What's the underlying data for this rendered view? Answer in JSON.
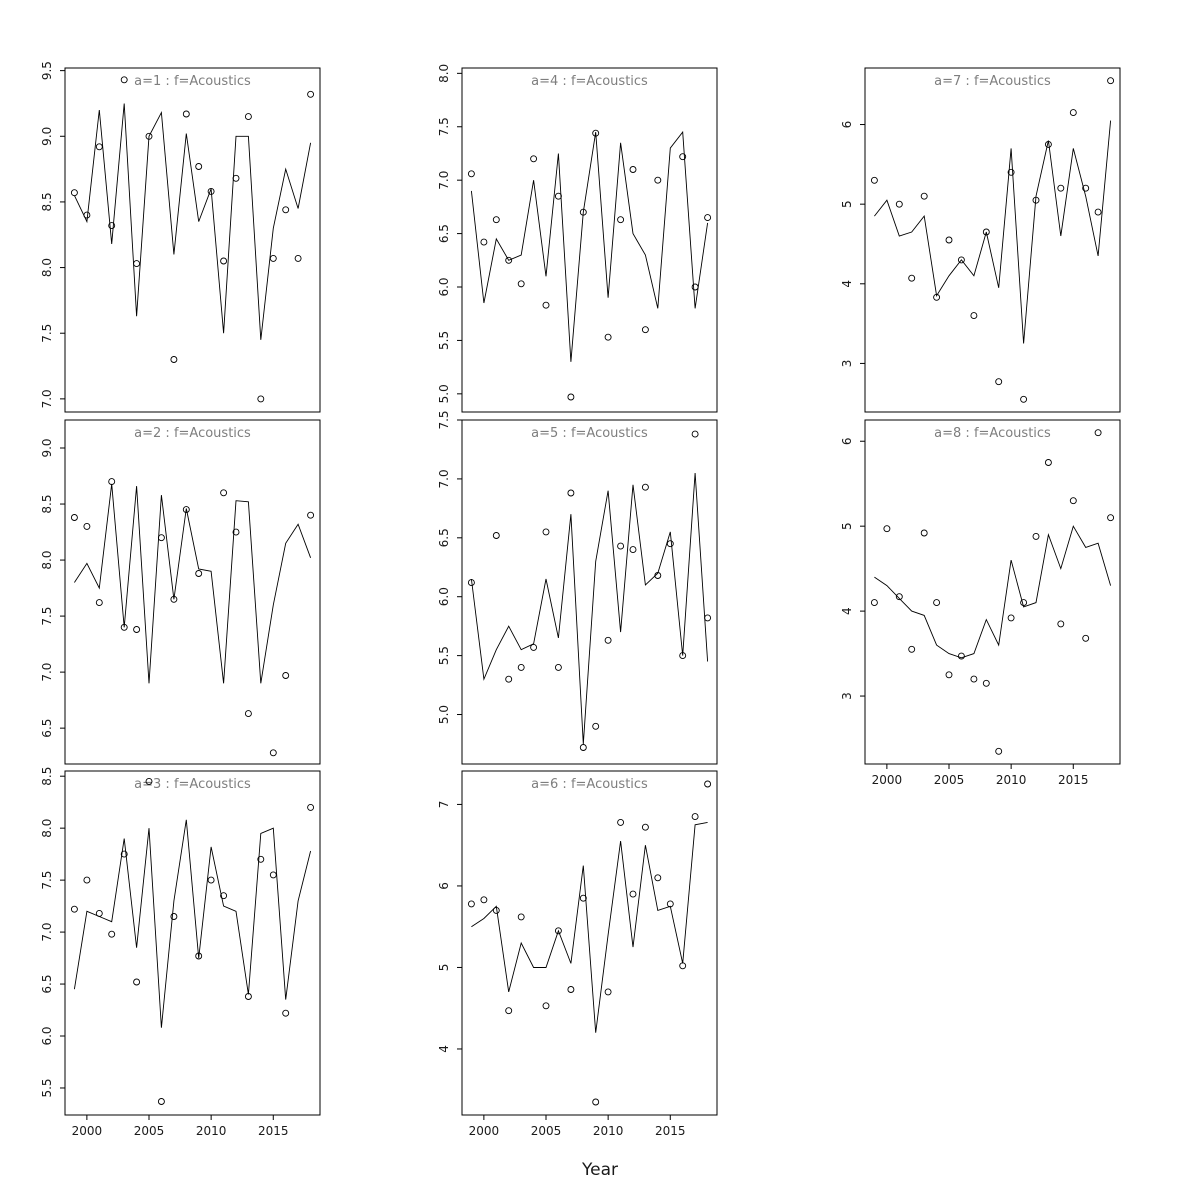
{
  "figure": {
    "xlabel": "Year",
    "title_color": "#7e7e7e",
    "axis_color": "#000000",
    "years": [
      1999,
      2000,
      2001,
      2002,
      2003,
      2004,
      2005,
      2006,
      2007,
      2008,
      2009,
      2010,
      2011,
      2012,
      2013,
      2014,
      2015,
      2016,
      2017,
      2018
    ]
  },
  "chart_data": [
    {
      "type": "scatter",
      "title": "a=1 : f=Acoustics",
      "xlim": [
        1998.24,
        2018.76
      ],
      "ylim": [
        6.9,
        9.52
      ],
      "xticks": [
        2000,
        2005,
        2010,
        2015
      ],
      "yticks": [
        7.0,
        7.5,
        8.0,
        8.5,
        9.0,
        9.5
      ],
      "ytick_labels": [
        "7.0",
        "7.5",
        "8.0",
        "8.5",
        "9.0",
        "9.5"
      ],
      "show_x_axis": false,
      "line": [
        8.55,
        8.35,
        9.2,
        8.18,
        9.25,
        7.63,
        9.0,
        9.18,
        8.1,
        9.02,
        8.35,
        8.6,
        7.5,
        9.0,
        9.0,
        7.45,
        8.3,
        8.75,
        8.45,
        8.95
      ],
      "points": {
        "x": [
          1999,
          2000,
          2001,
          2002,
          2003,
          2004,
          2005,
          2007,
          2008,
          2009,
          2010,
          2011,
          2012,
          2013,
          2014,
          2015,
          2016,
          2017,
          2018
        ],
        "y": [
          8.57,
          8.4,
          8.92,
          8.32,
          9.43,
          8.03,
          9.0,
          7.3,
          9.17,
          8.77,
          8.58,
          8.05,
          8.68,
          9.15,
          7.0,
          8.07,
          8.44,
          8.07,
          9.32
        ]
      }
    },
    {
      "type": "scatter",
      "title": "a=2 : f=Acoustics",
      "xlim": [
        1998.24,
        2018.76
      ],
      "ylim": [
        6.18,
        9.25
      ],
      "xticks": [
        2000,
        2005,
        2010,
        2015
      ],
      "yticks": [
        6.5,
        7.0,
        7.5,
        8.0,
        8.5,
        9.0
      ],
      "ytick_labels": [
        "6.5",
        "7.0",
        "7.5",
        "8.0",
        "8.5",
        "9.0"
      ],
      "show_x_axis": false,
      "line": [
        7.8,
        7.97,
        7.75,
        8.68,
        7.4,
        8.66,
        6.9,
        8.58,
        7.65,
        8.46,
        7.92,
        7.9,
        6.9,
        8.53,
        8.52,
        6.9,
        7.6,
        8.15,
        8.32,
        8.02
      ],
      "points": {
        "x": [
          1999,
          2000,
          2001,
          2002,
          2003,
          2004,
          2006,
          2007,
          2008,
          2009,
          2011,
          2012,
          2013,
          2015,
          2016,
          2018
        ],
        "y": [
          8.38,
          8.3,
          7.62,
          8.7,
          7.4,
          7.38,
          8.2,
          7.65,
          8.45,
          7.88,
          8.6,
          8.25,
          6.63,
          6.28,
          6.97,
          8.4
        ]
      }
    },
    {
      "type": "scatter",
      "title": "a=3 : f=Acoustics",
      "xlim": [
        1998.24,
        2018.76
      ],
      "ylim": [
        5.24,
        8.55
      ],
      "xticks": [
        2000,
        2005,
        2010,
        2015
      ],
      "yticks": [
        5.5,
        6.0,
        6.5,
        7.0,
        7.5,
        8.0,
        8.5
      ],
      "ytick_labels": [
        "5.5",
        "6.0",
        "6.5",
        "7.0",
        "7.5",
        "8.0",
        "8.5"
      ],
      "show_x_axis": true,
      "line": [
        6.45,
        7.2,
        7.15,
        7.1,
        7.9,
        6.85,
        8.0,
        6.08,
        7.3,
        8.08,
        6.75,
        7.82,
        7.25,
        7.2,
        6.4,
        7.95,
        8.0,
        6.35,
        7.3,
        7.78
      ],
      "points": {
        "x": [
          1999,
          2000,
          2001,
          2002,
          2003,
          2004,
          2005,
          2006,
          2007,
          2009,
          2010,
          2011,
          2013,
          2014,
          2015,
          2016,
          2018
        ],
        "y": [
          7.22,
          7.5,
          7.18,
          6.98,
          7.75,
          6.52,
          8.45,
          5.37,
          7.15,
          6.77,
          7.5,
          7.35,
          6.38,
          7.7,
          7.55,
          6.22,
          8.2
        ]
      }
    },
    {
      "type": "scatter",
      "title": "a=4 : f=Acoustics",
      "xlim": [
        1998.24,
        2018.76
      ],
      "ylim": [
        4.83,
        8.05
      ],
      "xticks": [
        2000,
        2005,
        2010,
        2015
      ],
      "yticks": [
        5.0,
        5.5,
        6.0,
        6.5,
        7.0,
        7.5,
        8.0
      ],
      "ytick_labels": [
        "5.0",
        "5.5",
        "6.0",
        "6.5",
        "7.0",
        "7.5",
        "8.0"
      ],
      "show_x_axis": false,
      "line": [
        6.9,
        5.85,
        6.45,
        6.25,
        6.3,
        7.0,
        6.1,
        7.25,
        5.3,
        6.7,
        7.45,
        5.9,
        7.35,
        6.5,
        6.3,
        5.8,
        7.3,
        7.45,
        5.8,
        6.6
      ],
      "points": {
        "x": [
          1999,
          2000,
          2001,
          2002,
          2003,
          2004,
          2005,
          2006,
          2007,
          2008,
          2009,
          2010,
          2011,
          2012,
          2013,
          2014,
          2016,
          2017,
          2018
        ],
        "y": [
          7.06,
          6.42,
          6.63,
          6.25,
          6.03,
          7.2,
          5.83,
          6.85,
          4.97,
          6.7,
          7.44,
          5.53,
          6.63,
          7.1,
          5.6,
          7.0,
          7.22,
          6.0,
          6.65
        ]
      }
    },
    {
      "type": "scatter",
      "title": "a=5 : f=Acoustics",
      "xlim": [
        1998.24,
        2018.76
      ],
      "ylim": [
        4.58,
        7.5
      ],
      "xticks": [
        2000,
        2005,
        2010,
        2015
      ],
      "yticks": [
        5.0,
        5.5,
        6.0,
        6.5,
        7.0,
        7.5
      ],
      "ytick_labels": [
        "5.0",
        "5.5",
        "6.0",
        "6.5",
        "7.0",
        "7.5"
      ],
      "show_x_axis": false,
      "line": [
        6.15,
        5.3,
        5.55,
        5.75,
        5.55,
        5.6,
        6.15,
        5.65,
        6.7,
        4.75,
        6.3,
        6.9,
        5.7,
        6.95,
        6.1,
        6.2,
        6.55,
        5.5,
        7.05,
        5.45
      ],
      "points": {
        "x": [
          1999,
          2001,
          2002,
          2003,
          2004,
          2005,
          2006,
          2007,
          2008,
          2009,
          2010,
          2011,
          2012,
          2013,
          2014,
          2015,
          2016,
          2017,
          2018
        ],
        "y": [
          6.12,
          6.52,
          5.3,
          5.4,
          5.57,
          6.55,
          5.4,
          6.88,
          4.72,
          4.9,
          5.63,
          6.43,
          6.4,
          6.93,
          6.18,
          6.45,
          5.5,
          7.38,
          5.82
        ]
      }
    },
    {
      "type": "scatter",
      "title": "a=6 : f=Acoustics",
      "xlim": [
        1998.24,
        2018.76
      ],
      "ylim": [
        3.19,
        7.41
      ],
      "xticks": [
        2000,
        2005,
        2010,
        2015
      ],
      "yticks": [
        4,
        5,
        6,
        7
      ],
      "ytick_labels": [
        "4",
        "5",
        "6",
        "7"
      ],
      "show_x_axis": true,
      "line": [
        5.5,
        5.6,
        5.75,
        4.7,
        5.3,
        5.0,
        5.0,
        5.45,
        5.05,
        6.25,
        4.2,
        5.4,
        6.55,
        5.25,
        6.5,
        5.7,
        5.75,
        5.05,
        6.75,
        6.78
      ],
      "points": {
        "x": [
          1999,
          2000,
          2001,
          2002,
          2003,
          2005,
          2006,
          2007,
          2008,
          2009,
          2010,
          2011,
          2012,
          2013,
          2014,
          2015,
          2016,
          2017,
          2018
        ],
        "y": [
          5.78,
          5.83,
          5.7,
          4.47,
          5.62,
          4.53,
          5.45,
          4.73,
          5.85,
          3.35,
          4.7,
          6.78,
          5.9,
          6.72,
          6.1,
          5.78,
          5.02,
          6.85,
          7.25
        ]
      }
    },
    {
      "type": "scatter",
      "title": "a=7 : f=Acoustics",
      "xlim": [
        1998.24,
        2018.76
      ],
      "ylim": [
        2.39,
        6.71
      ],
      "xticks": [
        2000,
        2005,
        2010,
        2015
      ],
      "yticks": [
        3,
        4,
        5,
        6
      ],
      "ytick_labels": [
        "3",
        "4",
        "5",
        "6"
      ],
      "show_x_axis": false,
      "line": [
        4.85,
        5.05,
        4.6,
        4.65,
        4.85,
        3.85,
        4.1,
        4.3,
        4.1,
        4.65,
        3.95,
        5.7,
        3.25,
        5.1,
        5.8,
        4.6,
        5.7,
        5.1,
        4.35,
        6.05
      ],
      "points": {
        "x": [
          1999,
          2001,
          2002,
          2003,
          2004,
          2005,
          2006,
          2007,
          2008,
          2009,
          2010,
          2011,
          2012,
          2013,
          2014,
          2015,
          2016,
          2017,
          2018
        ],
        "y": [
          5.3,
          5.0,
          4.07,
          5.1,
          3.83,
          4.55,
          4.3,
          3.6,
          4.65,
          2.77,
          5.4,
          2.55,
          5.05,
          5.75,
          5.2,
          6.15,
          5.2,
          4.9,
          6.55
        ]
      }
    },
    {
      "type": "scatter",
      "title": "a=8 : f=Acoustics",
      "xlim": [
        1998.24,
        2018.76
      ],
      "ylim": [
        2.2,
        6.25
      ],
      "xticks": [
        2000,
        2005,
        2010,
        2015
      ],
      "yticks": [
        3,
        4,
        5,
        6
      ],
      "ytick_labels": [
        "3",
        "4",
        "5",
        "6"
      ],
      "show_x_axis": true,
      "line": [
        4.4,
        4.3,
        4.15,
        4.0,
        3.95,
        3.6,
        3.5,
        3.45,
        3.5,
        3.9,
        3.6,
        4.6,
        4.05,
        4.1,
        4.9,
        4.5,
        5.0,
        4.75,
        4.8,
        4.3
      ],
      "points": {
        "x": [
          1999,
          2000,
          2001,
          2002,
          2003,
          2004,
          2005,
          2006,
          2007,
          2008,
          2009,
          2010,
          2011,
          2012,
          2013,
          2014,
          2015,
          2016,
          2017,
          2018
        ],
        "y": [
          4.1,
          4.97,
          4.17,
          3.55,
          4.92,
          4.1,
          3.25,
          3.47,
          3.2,
          3.15,
          2.35,
          3.92,
          4.1,
          4.88,
          5.75,
          3.85,
          5.3,
          3.68,
          6.1,
          5.1
        ]
      }
    }
  ]
}
